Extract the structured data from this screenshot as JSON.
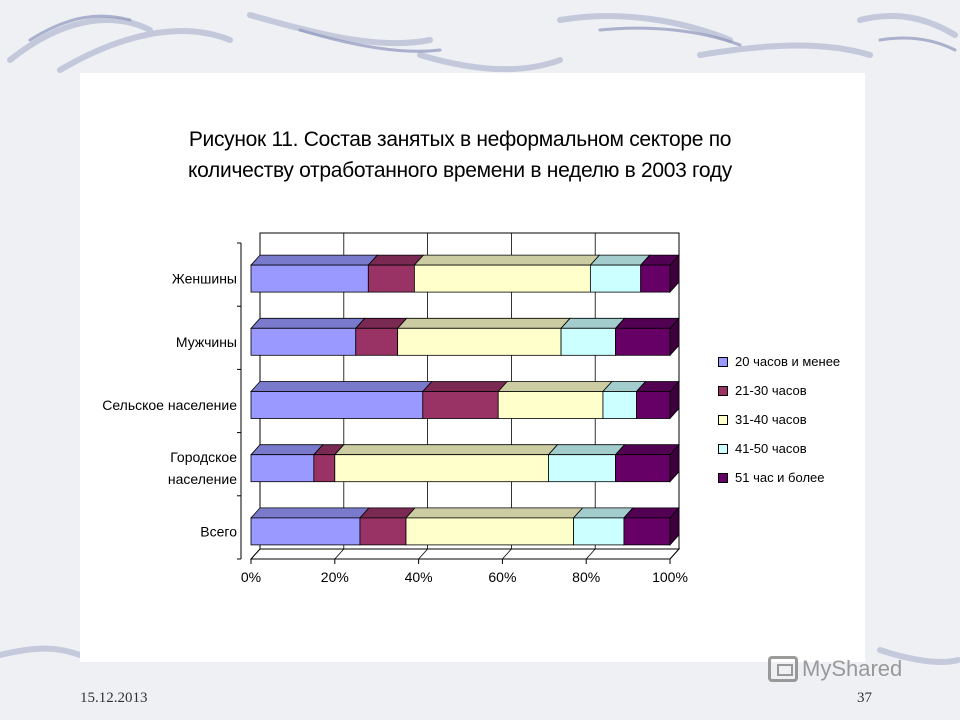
{
  "chart_data": {
    "type": "bar",
    "orientation": "horizontal",
    "stacked": "100%",
    "title": "Рисунок 11. Состав занятых в неформальном секторе по количеству отработанного времени в неделю в 2003 году",
    "title_lines": [
      "Рисунок 11. Состав занятых в неформальном секторе по",
      "количеству отработанного времени в неделю в 2003 году"
    ],
    "categories": [
      "Женшины",
      "Мужчины",
      "Сельское население",
      "Городское население",
      "Всего"
    ],
    "category_lines": [
      [
        "Женшины"
      ],
      [
        "Мужчины"
      ],
      [
        "Сельское население"
      ],
      [
        "Городское",
        "население"
      ],
      [
        "Всего"
      ]
    ],
    "series": [
      {
        "name": "20 часов и менее",
        "color": "#9999ff",
        "values": [
          28,
          25,
          41,
          15,
          26
        ]
      },
      {
        "name": "21-30 часов",
        "color": "#993366",
        "values": [
          11,
          10,
          18,
          5,
          11
        ]
      },
      {
        "name": "31-40 часов",
        "color": "#ffffcc",
        "values": [
          42,
          39,
          25,
          51,
          40
        ]
      },
      {
        "name": "41-50 часов",
        "color": "#ccffff",
        "values": [
          12,
          13,
          8,
          16,
          12
        ]
      },
      {
        "name": "51 час и более",
        "color": "#660066",
        "values": [
          7,
          13,
          8,
          13,
          11
        ]
      }
    ],
    "xlim": [
      0,
      100
    ],
    "x_ticks": [
      "0%",
      "20%",
      "40%",
      "60%",
      "80%",
      "100%"
    ],
    "grid": true,
    "legend_position": "right",
    "xlabel": "",
    "ylabel": ""
  },
  "footer": {
    "date": "15.12.2013",
    "page": "37"
  },
  "watermark": {
    "text": "MyShared",
    "icon": "projector-icon"
  }
}
